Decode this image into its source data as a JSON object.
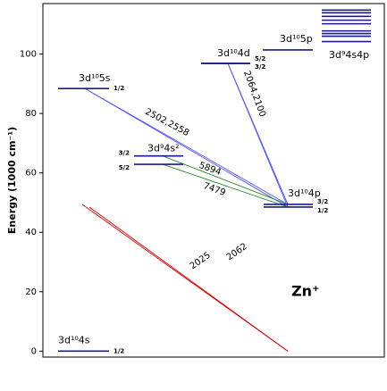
{
  "chart_data": {
    "type": "level-diagram",
    "ylabel": "Energy (1000 cm⁻¹)",
    "annotation": "Zn⁺",
    "ylim": [
      -2,
      117
    ],
    "yticks": [
      0,
      20,
      40,
      60,
      80,
      100
    ],
    "level_color": "#1a1a8c",
    "levels": [
      {
        "name": "3d¹⁰4s",
        "sublevels": [
          {
            "energy": 0,
            "j": "1/2"
          }
        ]
      },
      {
        "name": "3d¹⁰5s",
        "sublevels": [
          {
            "energy": 88.4,
            "j": "1/2"
          }
        ]
      },
      {
        "name": "3d⁹4s²",
        "sublevels": [
          {
            "energy": 65.7,
            "j": "3/2"
          },
          {
            "energy": 62.9,
            "j": "5/2"
          }
        ]
      },
      {
        "name": "3d¹⁰4d",
        "sublevels": [
          {
            "energy": 96.9,
            "j": "5/2"
          },
          {
            "energy": 96.8,
            "j": "3/2"
          }
        ]
      },
      {
        "name": "3d¹⁰5p",
        "sublevels": [
          {
            "energy": 101.4
          }
        ]
      },
      {
        "name": "3d¹⁰4p",
        "sublevels": [
          {
            "energy": 49.4,
            "j": "3/2"
          },
          {
            "energy": 48.5,
            "j": "1/2"
          }
        ]
      },
      {
        "name": "3d⁹4s4p",
        "sublevels": [
          {
            "energy": 114.8
          },
          {
            "energy": 113.9
          },
          {
            "energy": 112.7
          },
          {
            "energy": 111.4
          },
          {
            "energy": 110.2
          },
          {
            "energy": 107.8
          },
          {
            "energy": 106.9
          },
          {
            "energy": 106.0
          },
          {
            "energy": 104.2
          }
        ]
      }
    ],
    "transitions": [
      {
        "label": "2025",
        "color": "#e00000",
        "lines": [
          {
            "upper": 49.4,
            "lower": 0
          }
        ]
      },
      {
        "label": "2062",
        "color": "#e00000",
        "lines": [
          {
            "upper": 48.5,
            "lower": 0
          }
        ]
      },
      {
        "label": "2502,2558",
        "color": "#5555ff",
        "lines": [
          {
            "upper": 88.4,
            "lower": 49.4
          },
          {
            "upper": 88.4,
            "lower": 48.5
          }
        ]
      },
      {
        "label": "2064,2100",
        "color": "#5555ff",
        "lines": [
          {
            "upper": 96.9,
            "lower": 49.4
          },
          {
            "upper": 96.8,
            "lower": 48.5
          }
        ]
      },
      {
        "label": "5894",
        "color": "#2a8a2a",
        "lines": [
          {
            "upper": 65.7,
            "lower": 49.4
          }
        ]
      },
      {
        "label": "7479",
        "color": "#2a8a2a",
        "lines": [
          {
            "upper": 62.9,
            "lower": 48.5
          }
        ]
      }
    ]
  }
}
